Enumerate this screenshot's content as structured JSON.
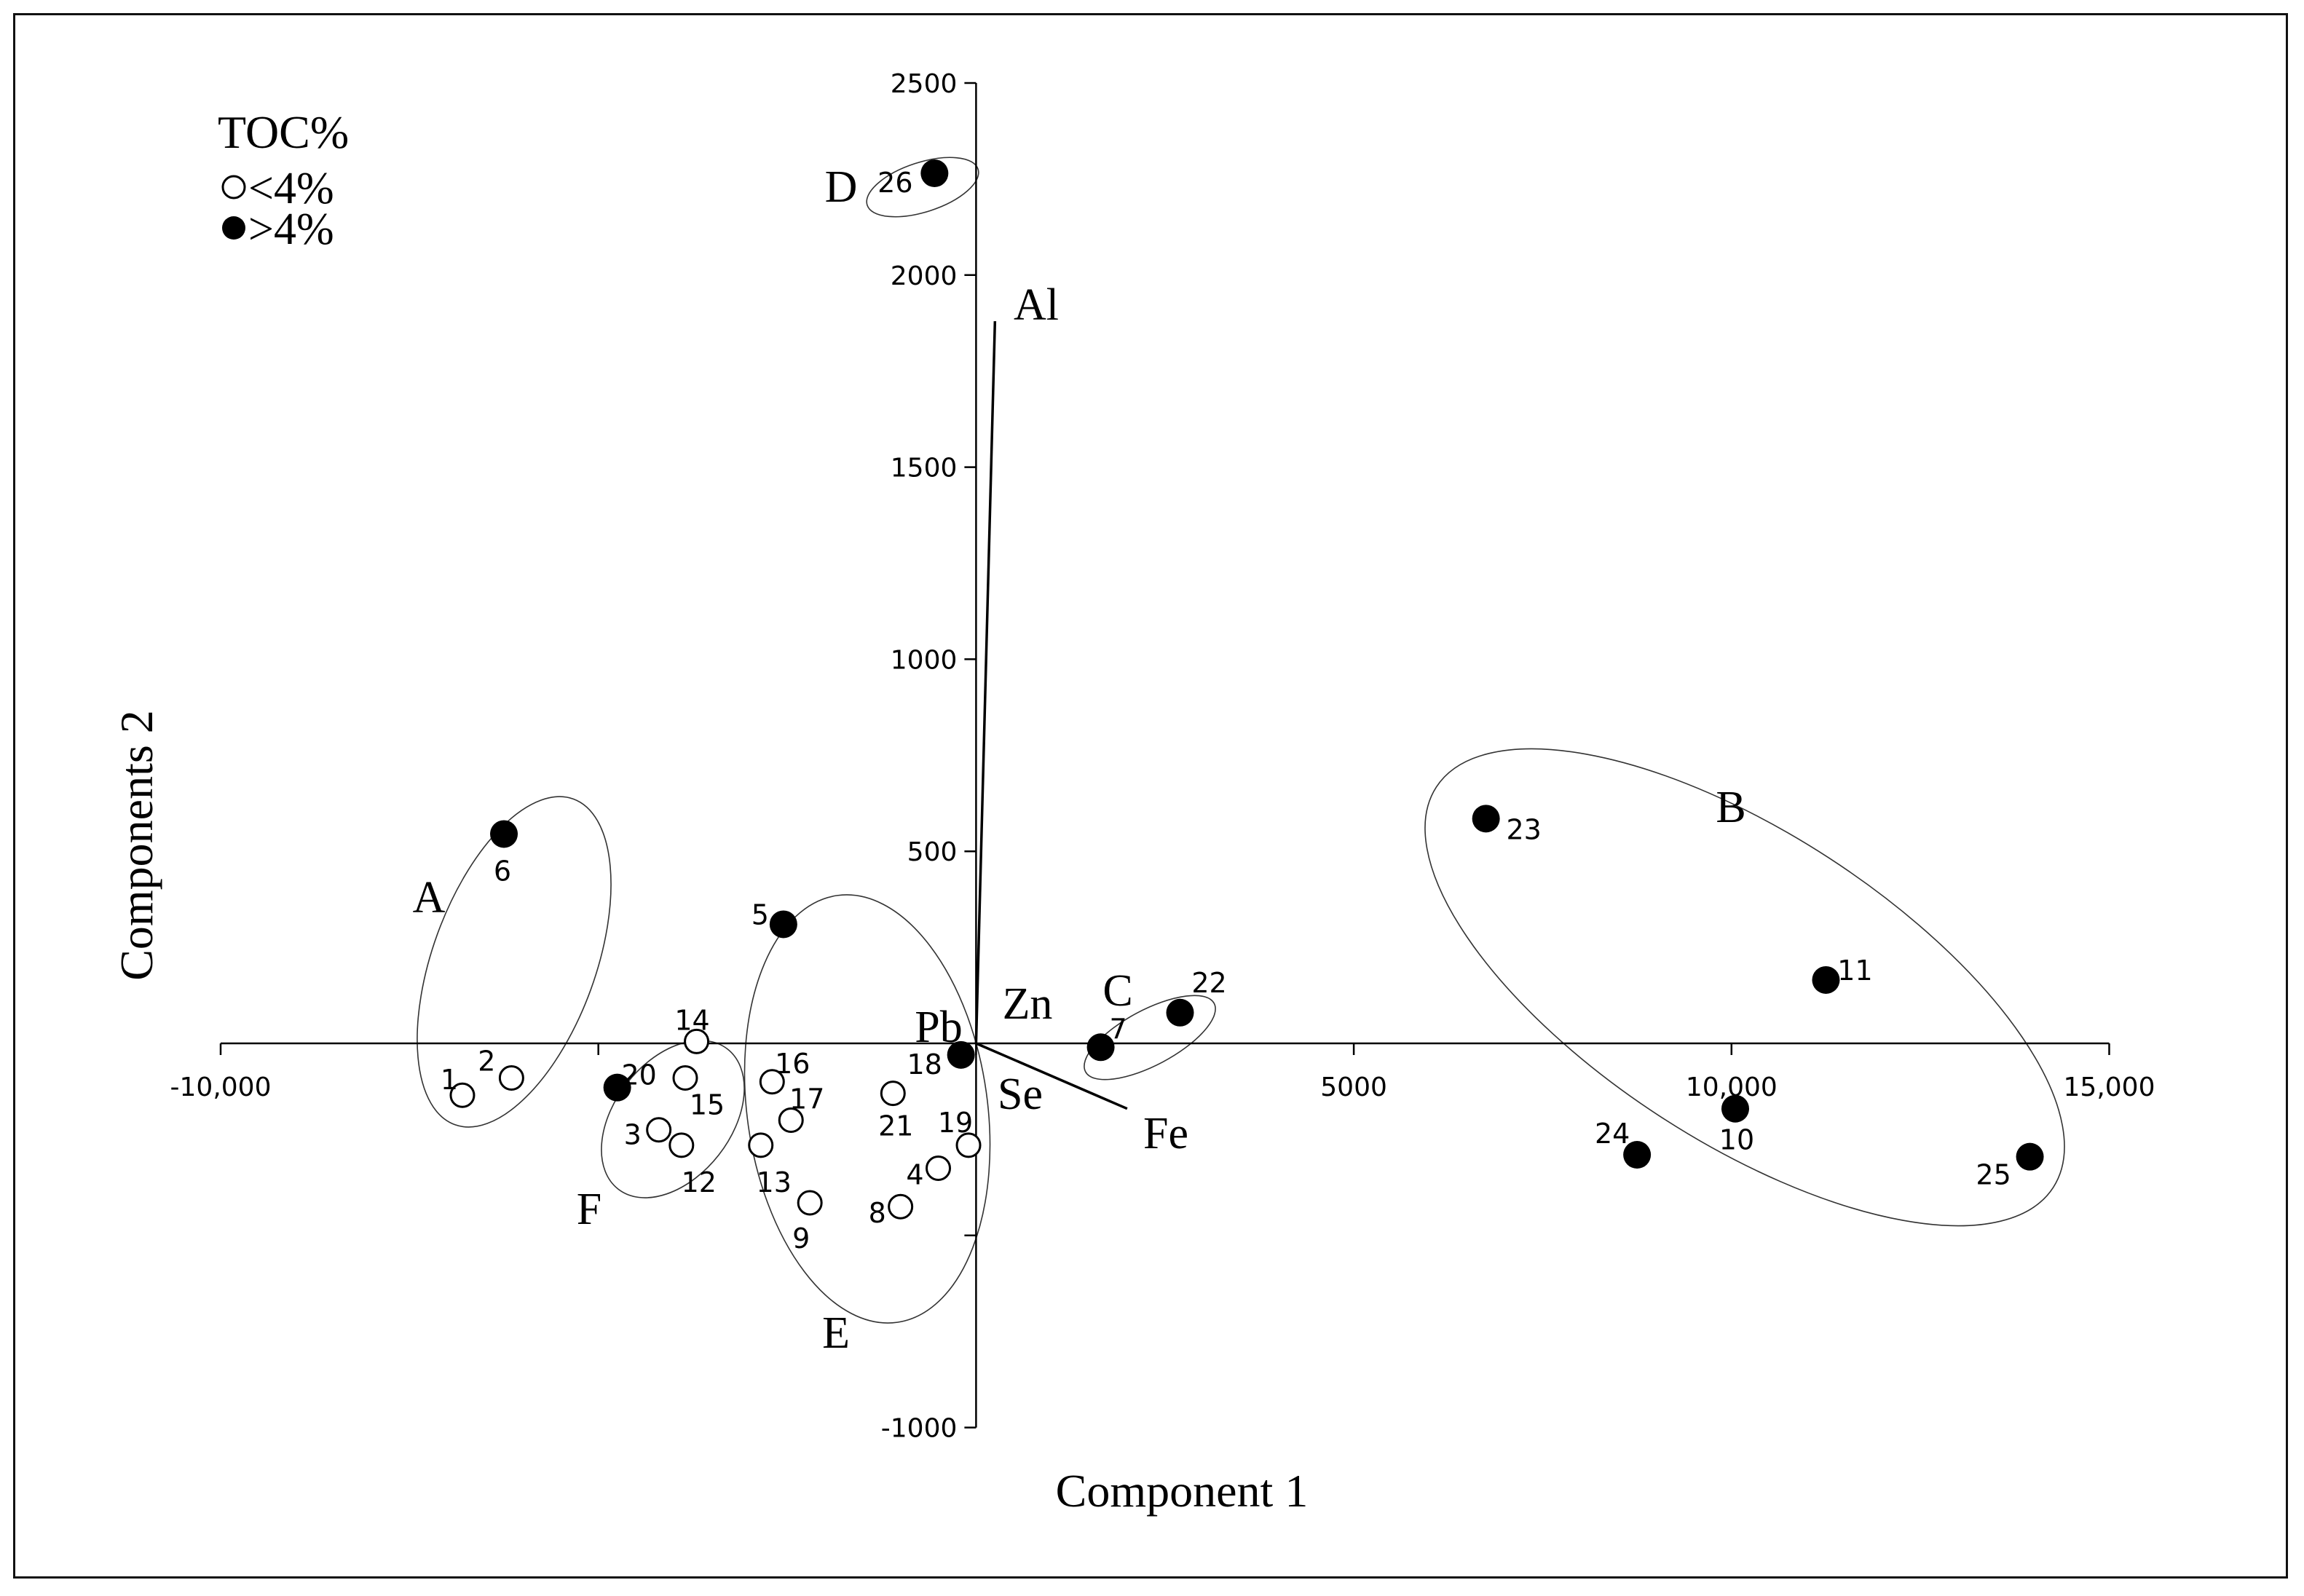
{
  "chart_data": {
    "type": "scatter",
    "xlabel": "Component 1",
    "ylabel": "Components 2",
    "xlim": [
      -10000,
      15000
    ],
    "ylim": [
      -1000,
      2500
    ],
    "x_ticks": [
      -10000,
      5000,
      10000,
      15000
    ],
    "x_tick_labels": [
      "-10,000",
      "5000",
      "10,000",
      "15,000"
    ],
    "y_ticks": [
      -1000,
      500,
      1000,
      1500,
      2000,
      2500
    ],
    "y_tick_labels": [
      "-1000",
      "500",
      "1000",
      "1500",
      "2000",
      "2500"
    ],
    "legend": {
      "title": "TOC%",
      "placement": "top-left",
      "entries": [
        {
          "label": "<4%",
          "marker": "open-circle"
        },
        {
          "label": ">4%",
          "marker": "filled-circle"
        }
      ]
    },
    "points": [
      {
        "label": "1",
        "x": -6800,
        "y": -135,
        "toc_above_4": false
      },
      {
        "label": "2",
        "x": -6150,
        "y": -90,
        "toc_above_4": false
      },
      {
        "label": "3",
        "x": -4200,
        "y": -225,
        "toc_above_4": false
      },
      {
        "label": "4",
        "x": -500,
        "y": -325,
        "toc_above_4": false
      },
      {
        "label": "5",
        "x": -2550,
        "y": 310,
        "toc_above_4": true
      },
      {
        "label": "6",
        "x": -6250,
        "y": 545,
        "toc_above_4": true
      },
      {
        "label": "7",
        "x": 1650,
        "y": -10,
        "toc_above_4": true
      },
      {
        "label": "8",
        "x": -1000,
        "y": -425,
        "toc_above_4": false
      },
      {
        "label": "9",
        "x": -2200,
        "y": -415,
        "toc_above_4": false
      },
      {
        "label": "10",
        "x": 10050,
        "y": -170,
        "toc_above_4": true
      },
      {
        "label": "11",
        "x": 11250,
        "y": 165,
        "toc_above_4": true
      },
      {
        "label": "12",
        "x": -3900,
        "y": -265,
        "toc_above_4": false
      },
      {
        "label": "13",
        "x": -2850,
        "y": -265,
        "toc_above_4": false
      },
      {
        "label": "14",
        "x": -3700,
        "y": 5,
        "toc_above_4": false
      },
      {
        "label": "15",
        "x": -3850,
        "y": -90,
        "toc_above_4": false
      },
      {
        "label": "16",
        "x": -2700,
        "y": -100,
        "toc_above_4": false
      },
      {
        "label": "17",
        "x": -2450,
        "y": -200,
        "toc_above_4": false
      },
      {
        "label": "18",
        "x": -200,
        "y": -30,
        "toc_above_4": true
      },
      {
        "label": "19",
        "x": -100,
        "y": -265,
        "toc_above_4": false
      },
      {
        "label": "20",
        "x": -4750,
        "y": -115,
        "toc_above_4": true
      },
      {
        "label": "21",
        "x": -1100,
        "y": -130,
        "toc_above_4": false
      },
      {
        "label": "22",
        "x": 2700,
        "y": 80,
        "toc_above_4": true
      },
      {
        "label": "23",
        "x": 6750,
        "y": 585,
        "toc_above_4": true
      },
      {
        "label": "24",
        "x": 8750,
        "y": -290,
        "toc_above_4": true
      },
      {
        "label": "25",
        "x": 13950,
        "y": -295,
        "toc_above_4": true
      },
      {
        "label": "26",
        "x": -550,
        "y": 2265,
        "toc_above_4": true
      }
    ],
    "vectors": [
      {
        "label": "Al",
        "x": 250,
        "y": 1880
      },
      {
        "label": "Zn",
        "x": 0,
        "y": 0
      },
      {
        "label": "Pb",
        "x": 0,
        "y": 0
      },
      {
        "label": "Se",
        "x": 0,
        "y": 0
      },
      {
        "label": "Fe",
        "x": 2000,
        "y": -170
      }
    ],
    "groups": [
      {
        "label": "A",
        "members": [
          "1",
          "2",
          "6"
        ]
      },
      {
        "label": "B",
        "members": [
          "10",
          "11",
          "23",
          "24",
          "25"
        ]
      },
      {
        "label": "C",
        "members": [
          "7",
          "22"
        ]
      },
      {
        "label": "D",
        "members": [
          "26"
        ]
      },
      {
        "label": "E",
        "members": [
          "4",
          "5",
          "8",
          "9",
          "13",
          "16",
          "17",
          "18",
          "19",
          "21"
        ]
      },
      {
        "label": "F",
        "members": [
          "3",
          "12",
          "14",
          "15",
          "20"
        ]
      }
    ]
  }
}
